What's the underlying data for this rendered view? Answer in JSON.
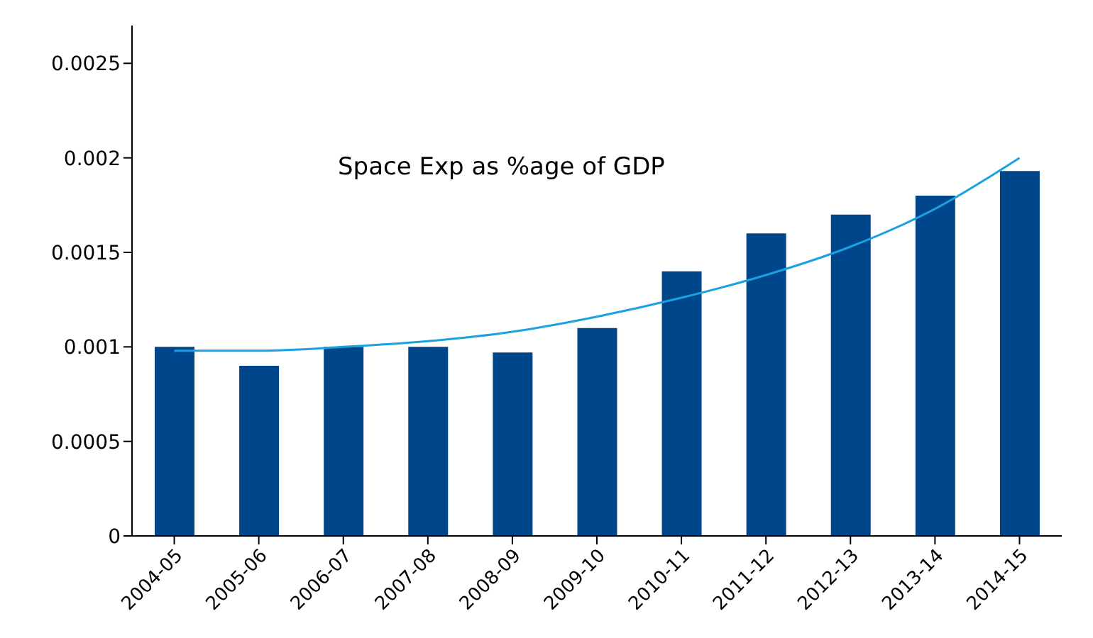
{
  "chart_data": {
    "type": "bar",
    "title": "Space Exp as %age of GDP",
    "categories": [
      "2004-05",
      "2005-06",
      "2006-07",
      "2007-08",
      "2008-09",
      "2009-10",
      "2010-11",
      "2011-12",
      "2012-13",
      "2013-14",
      "2014-15"
    ],
    "series": [
      {
        "color": "#00468b",
        "values": [
          0.001,
          0.0009,
          0.001,
          0.001,
          0.00097,
          0.0011,
          0.0014,
          0.0016,
          0.0017,
          0.0018,
          0.00193
        ]
      },
      {
        "type": "line",
        "color": "#1ba1e2",
        "marker": "none",
        "values": [
          0.00098,
          0.00098,
          0.001,
          0.00103,
          0.00108,
          0.00116,
          0.00126,
          0.00138,
          0.00153,
          0.00173,
          0.002
        ]
      }
    ],
    "ylim": [
      0,
      0.0027
    ],
    "yticks": [
      0,
      0.0005,
      0.001,
      0.0015,
      0.002,
      0.0025
    ],
    "grid": false
  }
}
